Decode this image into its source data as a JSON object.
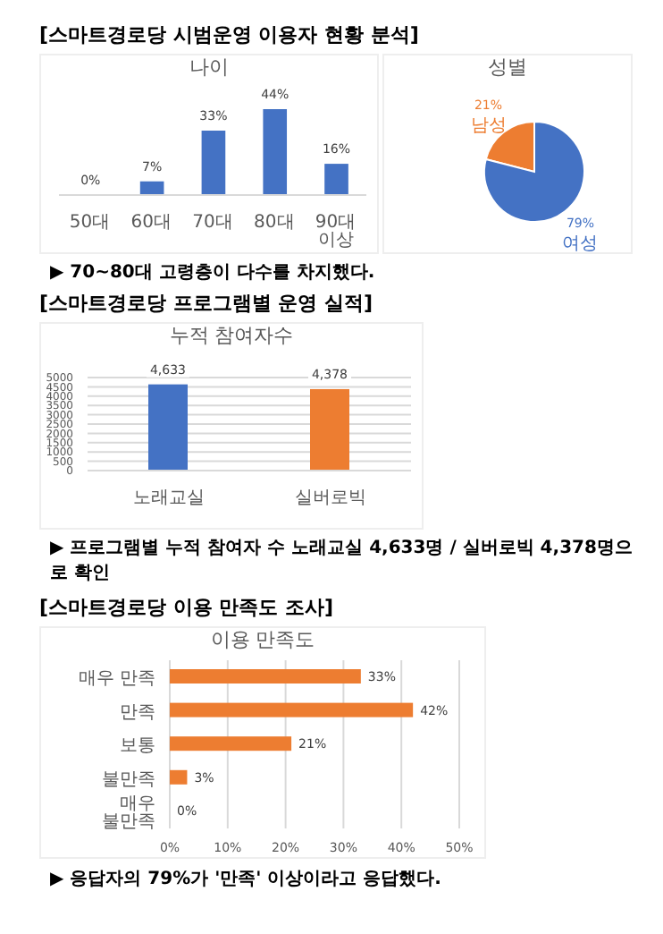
{
  "chart_data": [
    {
      "type": "bar",
      "title": "나이",
      "categories": [
        "50대",
        "60대",
        "70대",
        "80대",
        "90대 이상"
      ],
      "values": [
        0,
        7,
        33,
        44,
        16
      ],
      "color": "#4472c4",
      "tick_labels": "x",
      "value_labels": [
        "0%",
        "7%",
        "33%",
        "44%",
        "16%"
      ],
      "annotations": [
        "[스마트경로당 시범운영 이용자 현황 분석]",
        "▶ 70~80대 고령층이 다수를 차지했다."
      ]
    },
    {
      "type": "pie",
      "title": "성별",
      "categories": [
        "남성",
        "여성"
      ],
      "values": [
        21,
        79
      ],
      "colors": [
        "#ed7d31",
        "#4472c4"
      ],
      "value_labels": [
        "21%",
        "79%"
      ]
    },
    {
      "type": "bar",
      "title": "누적 참여자수",
      "categories": [
        "노래교실",
        "실버로빅"
      ],
      "values": [
        4633,
        4378
      ],
      "colors": [
        "#4472c4",
        "#ed7d31"
      ],
      "ylim": [
        0,
        5000
      ],
      "yticks": [
        0,
        500,
        1000,
        1500,
        2000,
        2500,
        3000,
        3500,
        4000,
        4500,
        5000
      ],
      "grid": "y",
      "value_labels": [
        "4,633",
        "4,378"
      ],
      "annotations": [
        "[스마트경로당 프로그램별 운영 실적]",
        "▶ 프로그램별 누적 참여자 수 노래교실 4,633명 / 실버로빅 4,378명으로 확인"
      ]
    },
    {
      "type": "bar",
      "orientation": "horizontal",
      "title": "이용 만족도",
      "categories": [
        "매우 만족",
        "만족",
        "보통",
        "불만족",
        "매우 불만족"
      ],
      "values": [
        33,
        42,
        21,
        3,
        0
      ],
      "color": "#ed7d31",
      "xlim": [
        0,
        50
      ],
      "xticks": [
        {
          "value": 0,
          "label": "0%"
        },
        {
          "value": 10,
          "label": "10%"
        },
        {
          "value": 20,
          "label": "20%"
        },
        {
          "value": 30,
          "label": "30%"
        },
        {
          "value": 40,
          "label": "40%"
        },
        {
          "value": 50,
          "label": "50%"
        }
      ],
      "grid": "x",
      "value_labels": [
        "33%",
        "42%",
        "21%",
        "3%",
        "0%"
      ],
      "annotations": [
        "[스마트경로당 이용 만족도 조사]",
        "▶ 응답자의 79%가 '만족' 이상이라고 응답했다."
      ]
    }
  ]
}
